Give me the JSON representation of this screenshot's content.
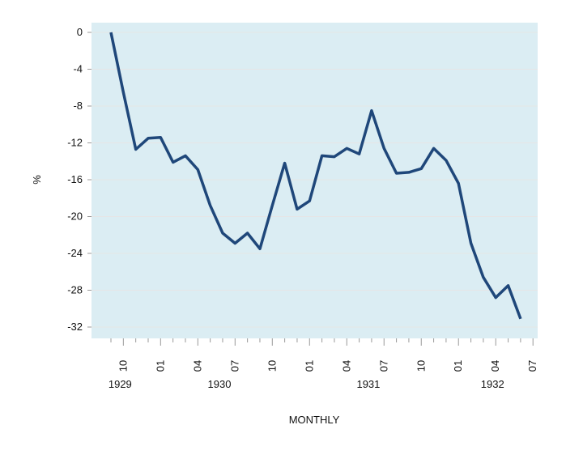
{
  "chart_data": {
    "type": "line",
    "title": "",
    "xlabel": "MONTHLY",
    "ylabel": "%",
    "ylim": [
      -33,
      2.5
    ],
    "yticks": [
      0,
      -4,
      -8,
      -12,
      -16,
      -20,
      -24,
      -28,
      -32
    ],
    "grid": true,
    "start": "1929-09",
    "x": [
      "1929-09",
      "1929-10",
      "1929-11",
      "1929-12",
      "1930-01",
      "1930-02",
      "1930-03",
      "1930-04",
      "1930-05",
      "1930-06",
      "1930-07",
      "1930-08",
      "1930-09",
      "1930-10",
      "1930-11",
      "1930-12",
      "1931-01",
      "1931-02",
      "1931-03",
      "1931-04",
      "1931-05",
      "1931-06",
      "1931-07",
      "1931-08",
      "1931-09",
      "1931-10",
      "1931-11",
      "1931-12",
      "1932-01",
      "1932-02",
      "1932-03",
      "1932-04",
      "1932-05",
      "1932-06"
    ],
    "series": [
      {
        "name": "%",
        "color": "#1F477A",
        "values": [
          0,
          -6.5,
          -12.7,
          -11.5,
          -11.4,
          -14.1,
          -13.4,
          -14.9,
          -18.8,
          -21.8,
          -22.9,
          -21.8,
          -23.5,
          -18.8,
          -14.2,
          -19.2,
          -18.3,
          -13.4,
          -13.5,
          -12.6,
          -13.2,
          -8.5,
          -12.6,
          -15.3,
          -15.2,
          -14.8,
          -12.6,
          -13.9,
          -16.4,
          -22.9,
          -26.6,
          -28.8,
          -27.5,
          -31.1
        ]
      }
    ],
    "month_labels": [
      {
        "index": 1,
        "label": "10"
      },
      {
        "index": 4,
        "label": "01"
      },
      {
        "index": 7,
        "label": "04"
      },
      {
        "index": 10,
        "label": "07"
      },
      {
        "index": 13,
        "label": "10"
      },
      {
        "index": 16,
        "label": "01"
      },
      {
        "index": 19,
        "label": "04"
      },
      {
        "index": 22,
        "label": "07"
      },
      {
        "index": 25,
        "label": "10"
      },
      {
        "index": 28,
        "label": "01"
      },
      {
        "index": 31,
        "label": "04"
      },
      {
        "index": 34,
        "label": "07"
      }
    ],
    "year_labels": [
      {
        "index": 1,
        "label": "1929"
      },
      {
        "index": 9,
        "label": "1930"
      },
      {
        "index": 21,
        "label": "1931"
      },
      {
        "index": 31,
        "label": "1932"
      }
    ],
    "plot_background": "#DBEDF3"
  }
}
